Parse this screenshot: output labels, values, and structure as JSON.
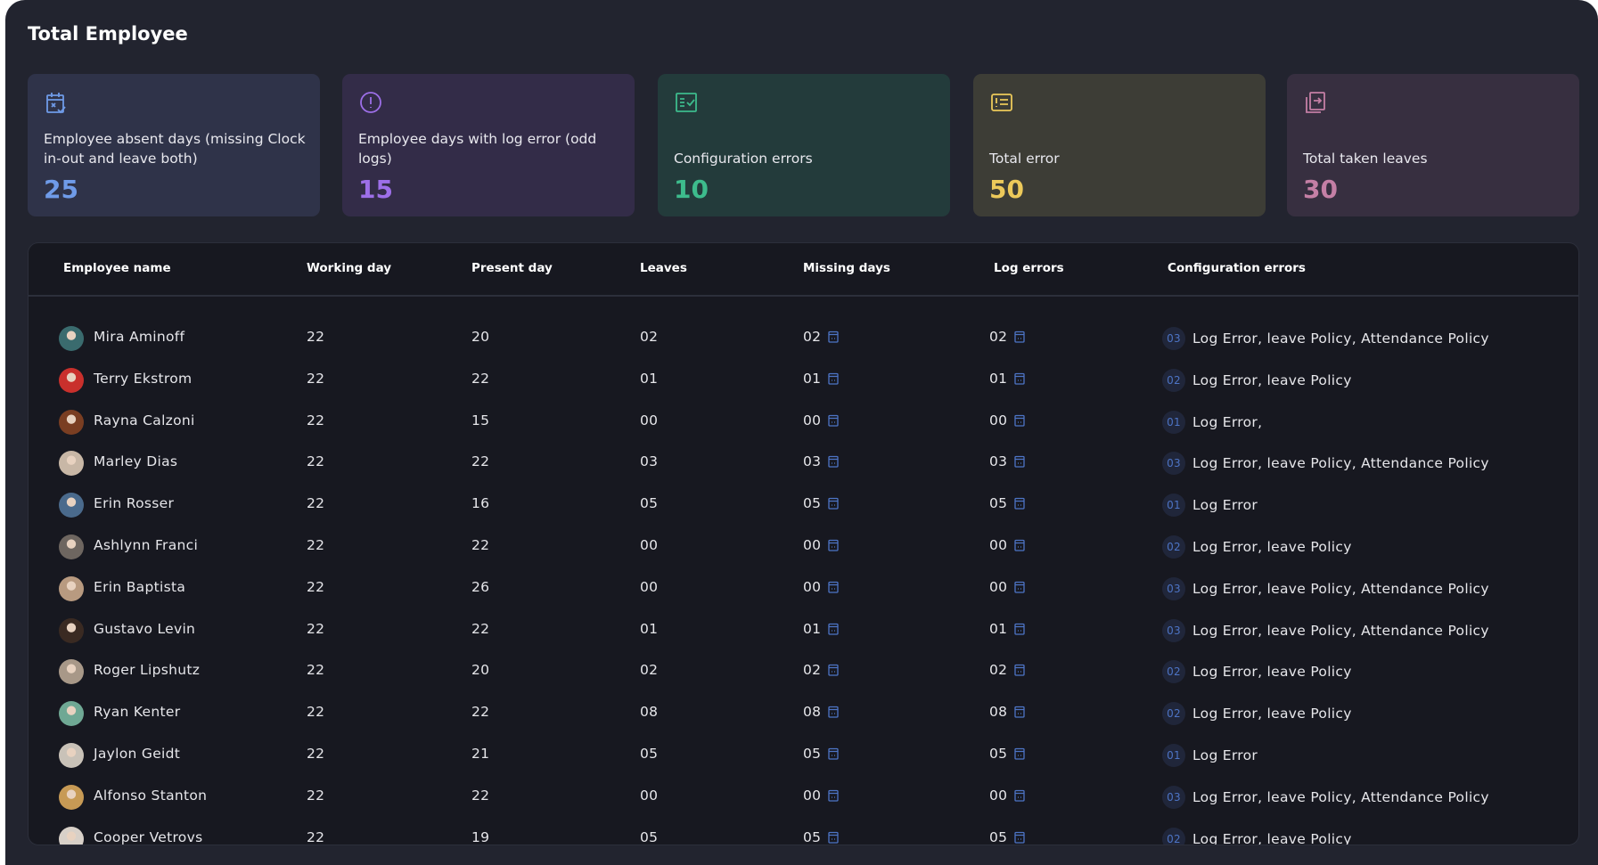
{
  "title": "Total Employee",
  "cards": [
    {
      "icon": "calendar-x-icon",
      "label": "Employee absent days (missing Clock in-out and leave both)",
      "value": "25",
      "bg": "#2f3349",
      "color": "#6f9be8"
    },
    {
      "icon": "alert-circle-icon",
      "label": "Employee days with log error (odd logs)",
      "value": "15",
      "bg": "#332c48",
      "color": "#9d6fe8"
    },
    {
      "icon": "checklist-icon",
      "label": "Configuration errors",
      "value": "10",
      "bg": "#233b3b",
      "color": "#3dbb8c"
    },
    {
      "icon": "error-list-icon",
      "label": "Total error",
      "value": "50",
      "bg": "#3d3d36",
      "color": "#ecc95a"
    },
    {
      "icon": "leave-transfer-icon",
      "label": "Total taken leaves",
      "value": "30",
      "bg": "#372f40",
      "color": "#c47fa5"
    }
  ],
  "table": {
    "headers": [
      "Employee name",
      "Working day",
      "Present day",
      "Leaves",
      "Missing days",
      "Log errors",
      "Configuration errors"
    ],
    "rows": [
      {
        "name": "Mira Aminoff",
        "working": "22",
        "present": "20",
        "leaves": "02",
        "missing": "02",
        "log": "02",
        "cfg_count": "03",
        "cfg": "Log Error, leave Policy, Attendance Policy",
        "avatar": "#3a6b6e"
      },
      {
        "name": "Terry Ekstrom",
        "working": "22",
        "present": "22",
        "leaves": "01",
        "missing": "01",
        "log": "01",
        "cfg_count": "02",
        "cfg": "Log Error, leave Policy",
        "avatar": "#c9302c"
      },
      {
        "name": "Rayna Calzoni",
        "working": "22",
        "present": "15",
        "leaves": "00",
        "missing": "00",
        "log": "00",
        "cfg_count": "01",
        "cfg": "Log Error,",
        "avatar": "#7a3e22"
      },
      {
        "name": "Marley Dias",
        "working": "22",
        "present": "22",
        "leaves": "03",
        "missing": "03",
        "log": "03",
        "cfg_count": "03",
        "cfg": "Log Error, leave Policy, Attendance Policy",
        "avatar": "#c8b7a6"
      },
      {
        "name": "Erin Rosser",
        "working": "22",
        "present": "16",
        "leaves": "05",
        "missing": "05",
        "log": "05",
        "cfg_count": "01",
        "cfg": "Log Error",
        "avatar": "#4a6a8c"
      },
      {
        "name": "Ashlynn Franci",
        "working": "22",
        "present": "22",
        "leaves": "00",
        "missing": "00",
        "log": "00",
        "cfg_count": "02",
        "cfg": "Log Error, leave Policy",
        "avatar": "#6e6660"
      },
      {
        "name": "Erin Baptista",
        "working": "22",
        "present": "26",
        "leaves": "00",
        "missing": "00",
        "log": "00",
        "cfg_count": "03",
        "cfg": "Log Error, leave Policy, Attendance Policy",
        "avatar": "#b89a80"
      },
      {
        "name": "Gustavo Levin",
        "working": "22",
        "present": "22",
        "leaves": "01",
        "missing": "01",
        "log": "01",
        "cfg_count": "03",
        "cfg": "Log Error, leave Policy, Attendance Policy",
        "avatar": "#3a2a22"
      },
      {
        "name": "Roger Lipshutz",
        "working": "22",
        "present": "20",
        "leaves": "02",
        "missing": "02",
        "log": "02",
        "cfg_count": "02",
        "cfg": "Log Error, leave Policy",
        "avatar": "#a89888"
      },
      {
        "name": "Ryan Kenter",
        "working": "22",
        "present": "22",
        "leaves": "08",
        "missing": "08",
        "log": "08",
        "cfg_count": "02",
        "cfg": "Log Error, leave Policy",
        "avatar": "#6fa894"
      },
      {
        "name": "Jaylon Geidt",
        "working": "22",
        "present": "21",
        "leaves": "05",
        "missing": "05",
        "log": "05",
        "cfg_count": "01",
        "cfg": "Log Error",
        "avatar": "#c9c2b8"
      },
      {
        "name": "Alfonso Stanton",
        "working": "22",
        "present": "22",
        "leaves": "00",
        "missing": "00",
        "log": "00",
        "cfg_count": "03",
        "cfg": "Log Error, leave Policy, Attendance Policy",
        "avatar": "#c79a55"
      },
      {
        "name": "Cooper Vetrovs",
        "working": "22",
        "present": "19",
        "leaves": "05",
        "missing": "05",
        "log": "05",
        "cfg_count": "02",
        "cfg": "Log Error, leave Policy",
        "avatar": "#d8d0c8"
      }
    ]
  }
}
